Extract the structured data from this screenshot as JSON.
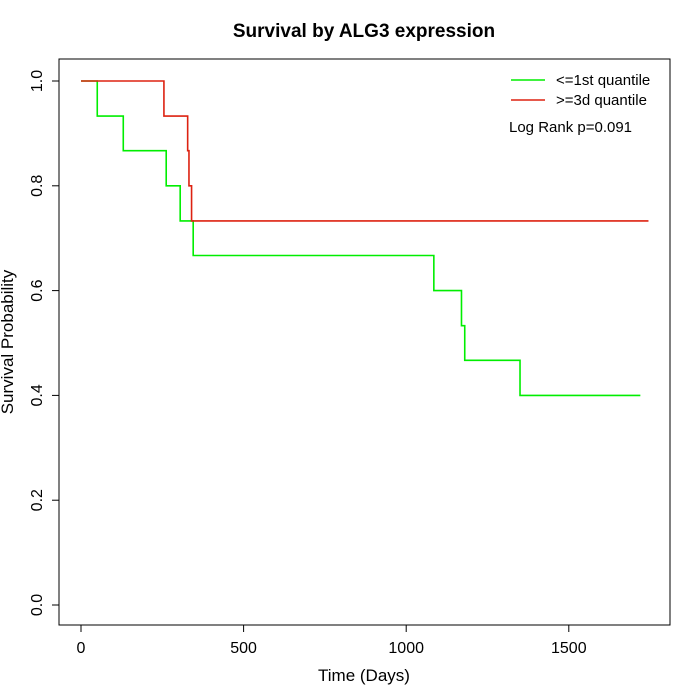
{
  "chart_data": {
    "type": "line",
    "title": "Survival by ALG3 expression",
    "xlabel": "Time (Days)",
    "ylabel": "Survival Probability",
    "xlim": [
      0,
      1750
    ],
    "ylim": [
      0,
      1
    ],
    "x_ticks": [
      {
        "value": 0,
        "label": "0"
      },
      {
        "value": 500,
        "label": "500"
      },
      {
        "value": 1000,
        "label": "1000"
      },
      {
        "value": 1500,
        "label": "1500"
      }
    ],
    "y_ticks": [
      {
        "value": 0.0,
        "label": "0.0"
      },
      {
        "value": 0.2,
        "label": "0.2"
      },
      {
        "value": 0.4,
        "label": "0.4"
      },
      {
        "value": 0.6,
        "label": "0.6"
      },
      {
        "value": 0.8,
        "label": "0.8"
      },
      {
        "value": 1.0,
        "label": "1.0"
      }
    ],
    "grid": false,
    "legend_position": "top-right",
    "annotation": "Log Rank p=0.091",
    "series": [
      {
        "name": "<=1st quantile",
        "color": "#00ee00",
        "step": true,
        "x": [
          0,
          50,
          130,
          262,
          305,
          345,
          1085,
          1170,
          1180,
          1350,
          1720
        ],
        "y": [
          1.0,
          0.933,
          0.867,
          0.8,
          0.733,
          0.667,
          0.6,
          0.533,
          0.467,
          0.4,
          0.4
        ]
      },
      {
        "name": ">=3d quantile",
        "color": "#dd2211",
        "step": true,
        "x": [
          0,
          255,
          328,
          332,
          340,
          1745
        ],
        "y": [
          1.0,
          0.933,
          0.867,
          0.8,
          0.733,
          0.733
        ]
      }
    ]
  }
}
